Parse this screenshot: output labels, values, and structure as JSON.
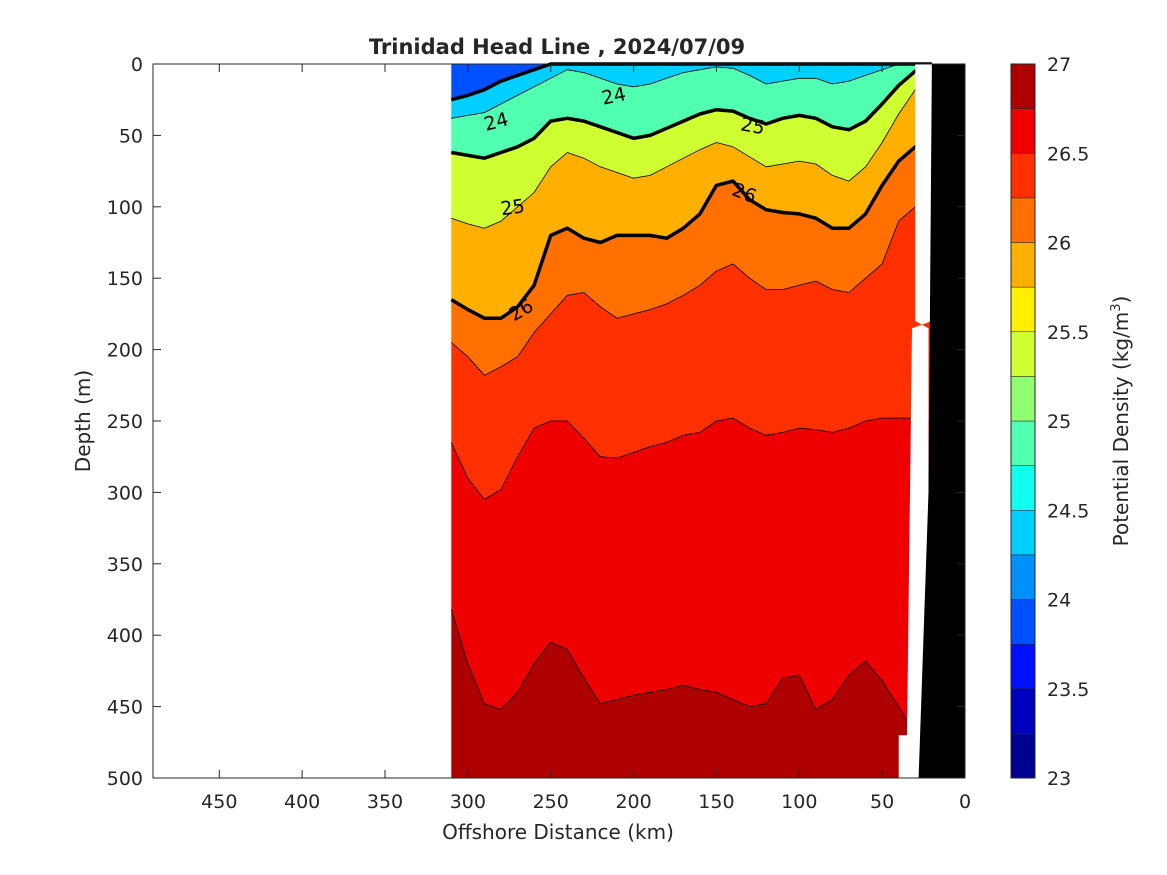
{
  "chart_data": {
    "type": "heatmap",
    "subtype": "filled-contour-section",
    "title": "Trinidad Head Line , 2024/07/09",
    "xlabel": "Offshore Distance (km)",
    "ylabel": "Depth (m)",
    "colorbar_label": "Potential Density (kg/m",
    "colorbar_label_sup": "3",
    "colorbar_label_end": ")",
    "x_reversed": true,
    "y_reversed": true,
    "xlim": [
      0,
      490
    ],
    "ylim": [
      0,
      500
    ],
    "x_ticks": [
      450,
      400,
      350,
      300,
      250,
      200,
      150,
      100,
      50,
      0
    ],
    "y_ticks": [
      0,
      50,
      100,
      150,
      200,
      250,
      300,
      350,
      400,
      450,
      500
    ],
    "colorbar": {
      "range": [
        23,
        27
      ],
      "step": 0.25,
      "ticks": [
        23,
        23.5,
        24,
        24.5,
        25,
        25.5,
        26,
        26.5,
        27
      ],
      "colors": [
        "#00008f",
        "#0000bf",
        "#0010ff",
        "#0050ff",
        "#0090ff",
        "#00cfff",
        "#10ffef",
        "#50ffaf",
        "#8fff70",
        "#cfff30",
        "#ffef00",
        "#ffaf00",
        "#ff7000",
        "#ff3000",
        "#ef0000",
        "#af0000"
      ]
    },
    "section_extent_km": [
      20,
      310
    ],
    "stations_km": [
      310,
      300,
      290,
      280,
      270,
      260,
      250,
      240,
      230,
      220,
      210,
      200,
      190,
      180,
      170,
      160,
      150,
      140,
      130,
      120,
      110,
      100,
      90,
      80,
      70,
      60,
      50,
      40,
      30,
      20
    ],
    "isopycnal_depths_m": [
      {
        "level": 24.0,
        "depths": [
          25,
          22,
          18,
          12,
          8,
          4,
          0,
          0,
          0,
          0,
          0,
          0,
          0,
          0,
          0,
          0,
          0,
          0,
          0,
          0,
          0,
          0,
          0,
          0,
          0,
          0,
          0,
          0,
          0,
          0
        ]
      },
      {
        "level": 24.5,
        "depths": [
          38,
          36,
          34,
          28,
          22,
          16,
          10,
          4,
          6,
          10,
          14,
          16,
          14,
          10,
          6,
          4,
          2,
          3,
          8,
          14,
          12,
          10,
          10,
          14,
          12,
          8,
          4,
          0,
          0,
          0
        ]
      },
      {
        "level": 25.0,
        "depths": [
          62,
          64,
          66,
          62,
          58,
          52,
          40,
          38,
          40,
          44,
          48,
          52,
          50,
          45,
          40,
          35,
          32,
          33,
          38,
          42,
          38,
          36,
          38,
          44,
          46,
          40,
          28,
          15,
          5,
          0
        ]
      },
      {
        "level": 25.5,
        "depths": [
          108,
          112,
          115,
          110,
          100,
          90,
          72,
          62,
          66,
          72,
          76,
          80,
          78,
          72,
          66,
          60,
          55,
          58,
          65,
          72,
          70,
          68,
          70,
          78,
          82,
          72,
          55,
          35,
          18,
          5
        ]
      },
      {
        "level": 26.0,
        "depths": [
          165,
          172,
          178,
          178,
          170,
          155,
          120,
          115,
          122,
          125,
          120,
          120,
          120,
          122,
          115,
          105,
          85,
          82,
          95,
          102,
          104,
          105,
          108,
          115,
          115,
          105,
          85,
          68,
          58,
          52
        ]
      },
      {
        "level": 26.25,
        "depths": [
          195,
          205,
          218,
          212,
          205,
          188,
          175,
          162,
          160,
          170,
          178,
          175,
          172,
          168,
          162,
          155,
          145,
          140,
          150,
          158,
          158,
          155,
          152,
          158,
          160,
          150,
          140,
          110,
          100,
          95
        ]
      },
      {
        "level": 26.5,
        "depths": [
          265,
          290,
          305,
          298,
          275,
          255,
          250,
          250,
          262,
          275,
          276,
          272,
          268,
          265,
          260,
          258,
          250,
          248,
          255,
          260,
          258,
          255,
          256,
          258,
          255,
          250,
          248,
          248,
          248,
          250
        ]
      },
      {
        "level": 26.75,
        "depths": [
          382,
          420,
          448,
          452,
          440,
          420,
          405,
          410,
          430,
          448,
          445,
          442,
          440,
          438,
          435,
          438,
          440,
          445,
          450,
          448,
          430,
          428,
          452,
          445,
          428,
          418,
          432,
          450,
          470,
          470
        ]
      }
    ],
    "bold_contours": [
      24,
      25,
      26
    ],
    "contour_labels": [
      {
        "text": "24",
        "x": 283,
        "y": 40,
        "angle": -15
      },
      {
        "text": "24",
        "x": 212,
        "y": 22,
        "angle": -12
      },
      {
        "text": "25",
        "x": 273,
        "y": 100,
        "angle": -8
      },
      {
        "text": "25",
        "x": 128,
        "y": 43,
        "angle": 10
      },
      {
        "text": "26",
        "x": 268,
        "y": 172,
        "angle": -30
      },
      {
        "text": "26",
        "x": 133,
        "y": 90,
        "angle": 22
      }
    ],
    "bathymetry_km_depth": [
      [
        0,
        0
      ],
      [
        20,
        0
      ],
      [
        22,
        300
      ],
      [
        28,
        500
      ],
      [
        0,
        500
      ]
    ]
  }
}
